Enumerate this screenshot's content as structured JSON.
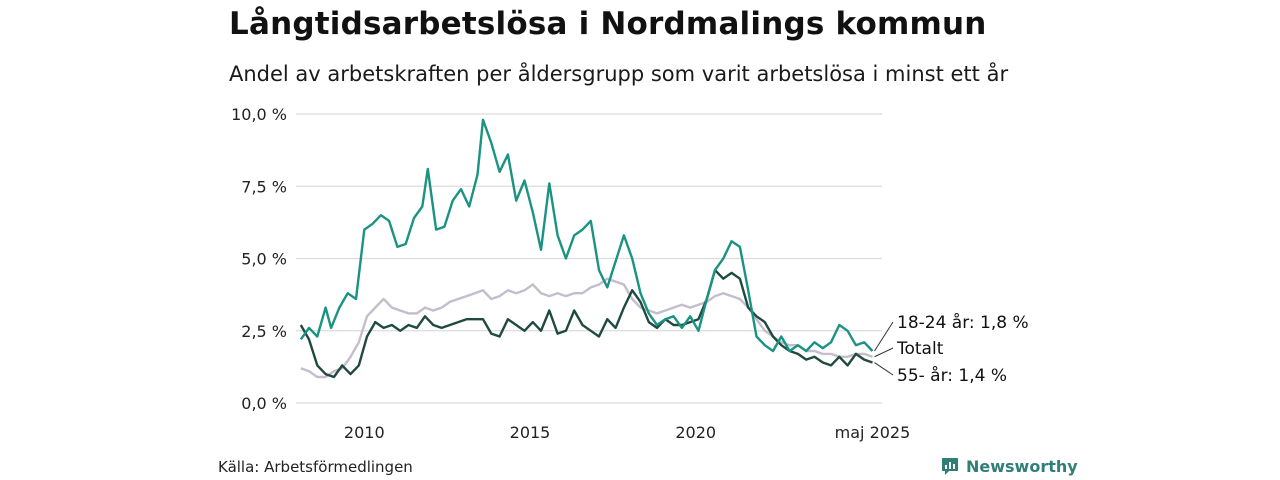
{
  "header": {
    "title": "Långtidsarbetslösa i Nordmalings kommun",
    "subtitle": "Andel av arbetskraften per åldersgrupp som varit arbetslösa i minst ett år"
  },
  "footer": {
    "source": "Källa: Arbetsförmedlingen",
    "brand": "Newsworthy"
  },
  "colors": {
    "youth": "#1a9383",
    "total": "#c3bdcc",
    "older": "#1f4a40",
    "grid": "#dcdcdc",
    "brand": "#2f7f78"
  },
  "chart_data": {
    "type": "line",
    "x_type": "date",
    "ylim": [
      0,
      10
    ],
    "y_ticks": [
      0,
      2.5,
      5,
      7.5,
      10
    ],
    "y_tick_labels": [
      "0,0 %",
      "2,5 %",
      "5,0 %",
      "7,5 %",
      "10,0 %"
    ],
    "x_ticks": [
      "2010",
      "2015",
      "2020",
      "maj 2025"
    ],
    "x_tick_dates": [
      "2010-01",
      "2015-01",
      "2020-01",
      "2025-05"
    ],
    "end_labels": [
      "18-24 år: 1,8 %",
      "Totalt",
      "55- år: 1,4 %"
    ],
    "series": [
      {
        "name": "18-24 år",
        "color": "#1a9383",
        "points": [
          [
            "2008-02",
            2.2
          ],
          [
            "2008-05",
            2.6
          ],
          [
            "2008-08",
            2.3
          ],
          [
            "2008-11",
            3.3
          ],
          [
            "2009-01",
            2.6
          ],
          [
            "2009-04",
            3.3
          ],
          [
            "2009-07",
            3.8
          ],
          [
            "2009-10",
            3.6
          ],
          [
            "2010-01",
            6.0
          ],
          [
            "2010-04",
            6.2
          ],
          [
            "2010-07",
            6.5
          ],
          [
            "2010-10",
            6.3
          ],
          [
            "2011-01",
            5.4
          ],
          [
            "2011-04",
            5.5
          ],
          [
            "2011-07",
            6.4
          ],
          [
            "2011-10",
            6.8
          ],
          [
            "2011-12",
            8.1
          ],
          [
            "2012-03",
            6.0
          ],
          [
            "2012-06",
            6.1
          ],
          [
            "2012-09",
            7.0
          ],
          [
            "2012-12",
            7.4
          ],
          [
            "2013-03",
            6.8
          ],
          [
            "2013-06",
            7.9
          ],
          [
            "2013-08",
            9.8
          ],
          [
            "2013-11",
            9.0
          ],
          [
            "2014-02",
            8.0
          ],
          [
            "2014-05",
            8.6
          ],
          [
            "2014-08",
            7.0
          ],
          [
            "2014-11",
            7.7
          ],
          [
            "2015-02",
            6.6
          ],
          [
            "2015-05",
            5.3
          ],
          [
            "2015-08",
            7.6
          ],
          [
            "2015-11",
            5.8
          ],
          [
            "2016-02",
            5.0
          ],
          [
            "2016-05",
            5.8
          ],
          [
            "2016-08",
            6.0
          ],
          [
            "2016-11",
            6.3
          ],
          [
            "2017-02",
            4.6
          ],
          [
            "2017-05",
            4.0
          ],
          [
            "2017-08",
            4.9
          ],
          [
            "2017-11",
            5.8
          ],
          [
            "2018-02",
            5.0
          ],
          [
            "2018-05",
            3.8
          ],
          [
            "2018-08",
            3.1
          ],
          [
            "2018-11",
            2.7
          ],
          [
            "2019-02",
            2.9
          ],
          [
            "2019-05",
            3.0
          ],
          [
            "2019-08",
            2.6
          ],
          [
            "2019-11",
            3.0
          ],
          [
            "2020-02",
            2.5
          ],
          [
            "2020-05",
            3.6
          ],
          [
            "2020-08",
            4.6
          ],
          [
            "2020-11",
            5.0
          ],
          [
            "2021-02",
            5.6
          ],
          [
            "2021-05",
            5.4
          ],
          [
            "2021-08",
            3.9
          ],
          [
            "2021-11",
            2.3
          ],
          [
            "2022-02",
            2.0
          ],
          [
            "2022-05",
            1.8
          ],
          [
            "2022-08",
            2.3
          ],
          [
            "2022-11",
            1.8
          ],
          [
            "2023-02",
            2.0
          ],
          [
            "2023-05",
            1.8
          ],
          [
            "2023-08",
            2.1
          ],
          [
            "2023-11",
            1.9
          ],
          [
            "2024-02",
            2.1
          ],
          [
            "2024-05",
            2.7
          ],
          [
            "2024-08",
            2.5
          ],
          [
            "2024-11",
            2.0
          ],
          [
            "2025-02",
            2.1
          ],
          [
            "2025-05",
            1.8
          ]
        ]
      },
      {
        "name": "Totalt",
        "color": "#c3bdcc",
        "points": [
          [
            "2008-02",
            1.2
          ],
          [
            "2008-05",
            1.1
          ],
          [
            "2008-08",
            0.9
          ],
          [
            "2008-11",
            0.9
          ],
          [
            "2009-02",
            1.1
          ],
          [
            "2009-05",
            1.2
          ],
          [
            "2009-08",
            1.6
          ],
          [
            "2009-11",
            2.1
          ],
          [
            "2010-02",
            3.0
          ],
          [
            "2010-05",
            3.3
          ],
          [
            "2010-08",
            3.6
          ],
          [
            "2010-11",
            3.3
          ],
          [
            "2011-02",
            3.2
          ],
          [
            "2011-05",
            3.1
          ],
          [
            "2011-08",
            3.1
          ],
          [
            "2011-11",
            3.3
          ],
          [
            "2012-02",
            3.2
          ],
          [
            "2012-05",
            3.3
          ],
          [
            "2012-08",
            3.5
          ],
          [
            "2012-11",
            3.6
          ],
          [
            "2013-02",
            3.7
          ],
          [
            "2013-05",
            3.8
          ],
          [
            "2013-08",
            3.9
          ],
          [
            "2013-11",
            3.6
          ],
          [
            "2014-02",
            3.7
          ],
          [
            "2014-05",
            3.9
          ],
          [
            "2014-08",
            3.8
          ],
          [
            "2014-11",
            3.9
          ],
          [
            "2015-02",
            4.1
          ],
          [
            "2015-05",
            3.8
          ],
          [
            "2015-08",
            3.7
          ],
          [
            "2015-11",
            3.8
          ],
          [
            "2016-02",
            3.7
          ],
          [
            "2016-05",
            3.8
          ],
          [
            "2016-08",
            3.8
          ],
          [
            "2016-11",
            4.0
          ],
          [
            "2017-02",
            4.1
          ],
          [
            "2017-05",
            4.3
          ],
          [
            "2017-08",
            4.2
          ],
          [
            "2017-11",
            4.1
          ],
          [
            "2018-02",
            3.6
          ],
          [
            "2018-05",
            3.3
          ],
          [
            "2018-08",
            3.2
          ],
          [
            "2018-11",
            3.1
          ],
          [
            "2019-02",
            3.2
          ],
          [
            "2019-05",
            3.3
          ],
          [
            "2019-08",
            3.4
          ],
          [
            "2019-11",
            3.3
          ],
          [
            "2020-02",
            3.4
          ],
          [
            "2020-05",
            3.5
          ],
          [
            "2020-08",
            3.7
          ],
          [
            "2020-11",
            3.8
          ],
          [
            "2021-02",
            3.7
          ],
          [
            "2021-05",
            3.6
          ],
          [
            "2021-08",
            3.3
          ],
          [
            "2021-11",
            2.9
          ],
          [
            "2022-02",
            2.5
          ],
          [
            "2022-05",
            2.3
          ],
          [
            "2022-08",
            2.1
          ],
          [
            "2022-11",
            2.0
          ],
          [
            "2023-02",
            2.0
          ],
          [
            "2023-05",
            1.8
          ],
          [
            "2023-08",
            1.8
          ],
          [
            "2023-11",
            1.7
          ],
          [
            "2024-02",
            1.7
          ],
          [
            "2024-05",
            1.6
          ],
          [
            "2024-08",
            1.6
          ],
          [
            "2024-11",
            1.7
          ],
          [
            "2025-02",
            1.7
          ],
          [
            "2025-05",
            1.6
          ]
        ]
      },
      {
        "name": "55- år",
        "color": "#1f4a40",
        "points": [
          [
            "2008-02",
            2.7
          ],
          [
            "2008-05",
            2.2
          ],
          [
            "2008-08",
            1.3
          ],
          [
            "2008-11",
            1.0
          ],
          [
            "2009-02",
            0.9
          ],
          [
            "2009-05",
            1.3
          ],
          [
            "2009-08",
            1.0
          ],
          [
            "2009-11",
            1.3
          ],
          [
            "2010-02",
            2.3
          ],
          [
            "2010-05",
            2.8
          ],
          [
            "2010-08",
            2.6
          ],
          [
            "2010-11",
            2.7
          ],
          [
            "2011-02",
            2.5
          ],
          [
            "2011-05",
            2.7
          ],
          [
            "2011-08",
            2.6
          ],
          [
            "2011-11",
            3.0
          ],
          [
            "2012-02",
            2.7
          ],
          [
            "2012-05",
            2.6
          ],
          [
            "2012-08",
            2.7
          ],
          [
            "2012-11",
            2.8
          ],
          [
            "2013-02",
            2.9
          ],
          [
            "2013-05",
            2.9
          ],
          [
            "2013-08",
            2.9
          ],
          [
            "2013-11",
            2.4
          ],
          [
            "2014-02",
            2.3
          ],
          [
            "2014-05",
            2.9
          ],
          [
            "2014-08",
            2.7
          ],
          [
            "2014-11",
            2.5
          ],
          [
            "2015-02",
            2.8
          ],
          [
            "2015-05",
            2.5
          ],
          [
            "2015-08",
            3.2
          ],
          [
            "2015-11",
            2.4
          ],
          [
            "2016-02",
            2.5
          ],
          [
            "2016-05",
            3.2
          ],
          [
            "2016-08",
            2.7
          ],
          [
            "2016-11",
            2.5
          ],
          [
            "2017-02",
            2.3
          ],
          [
            "2017-05",
            2.9
          ],
          [
            "2017-08",
            2.6
          ],
          [
            "2017-11",
            3.3
          ],
          [
            "2018-02",
            3.9
          ],
          [
            "2018-05",
            3.5
          ],
          [
            "2018-08",
            2.8
          ],
          [
            "2018-11",
            2.6
          ],
          [
            "2019-02",
            2.9
          ],
          [
            "2019-05",
            2.7
          ],
          [
            "2019-08",
            2.7
          ],
          [
            "2019-11",
            2.8
          ],
          [
            "2020-02",
            2.9
          ],
          [
            "2020-05",
            3.6
          ],
          [
            "2020-08",
            4.6
          ],
          [
            "2020-11",
            4.3
          ],
          [
            "2021-02",
            4.5
          ],
          [
            "2021-05",
            4.3
          ],
          [
            "2021-08",
            3.3
          ],
          [
            "2021-11",
            3.0
          ],
          [
            "2022-02",
            2.8
          ],
          [
            "2022-05",
            2.3
          ],
          [
            "2022-08",
            2.0
          ],
          [
            "2022-11",
            1.8
          ],
          [
            "2023-02",
            1.7
          ],
          [
            "2023-05",
            1.5
          ],
          [
            "2023-08",
            1.6
          ],
          [
            "2023-11",
            1.4
          ],
          [
            "2024-02",
            1.3
          ],
          [
            "2024-05",
            1.6
          ],
          [
            "2024-08",
            1.3
          ],
          [
            "2024-11",
            1.7
          ],
          [
            "2025-02",
            1.5
          ],
          [
            "2025-05",
            1.4
          ]
        ]
      }
    ]
  }
}
